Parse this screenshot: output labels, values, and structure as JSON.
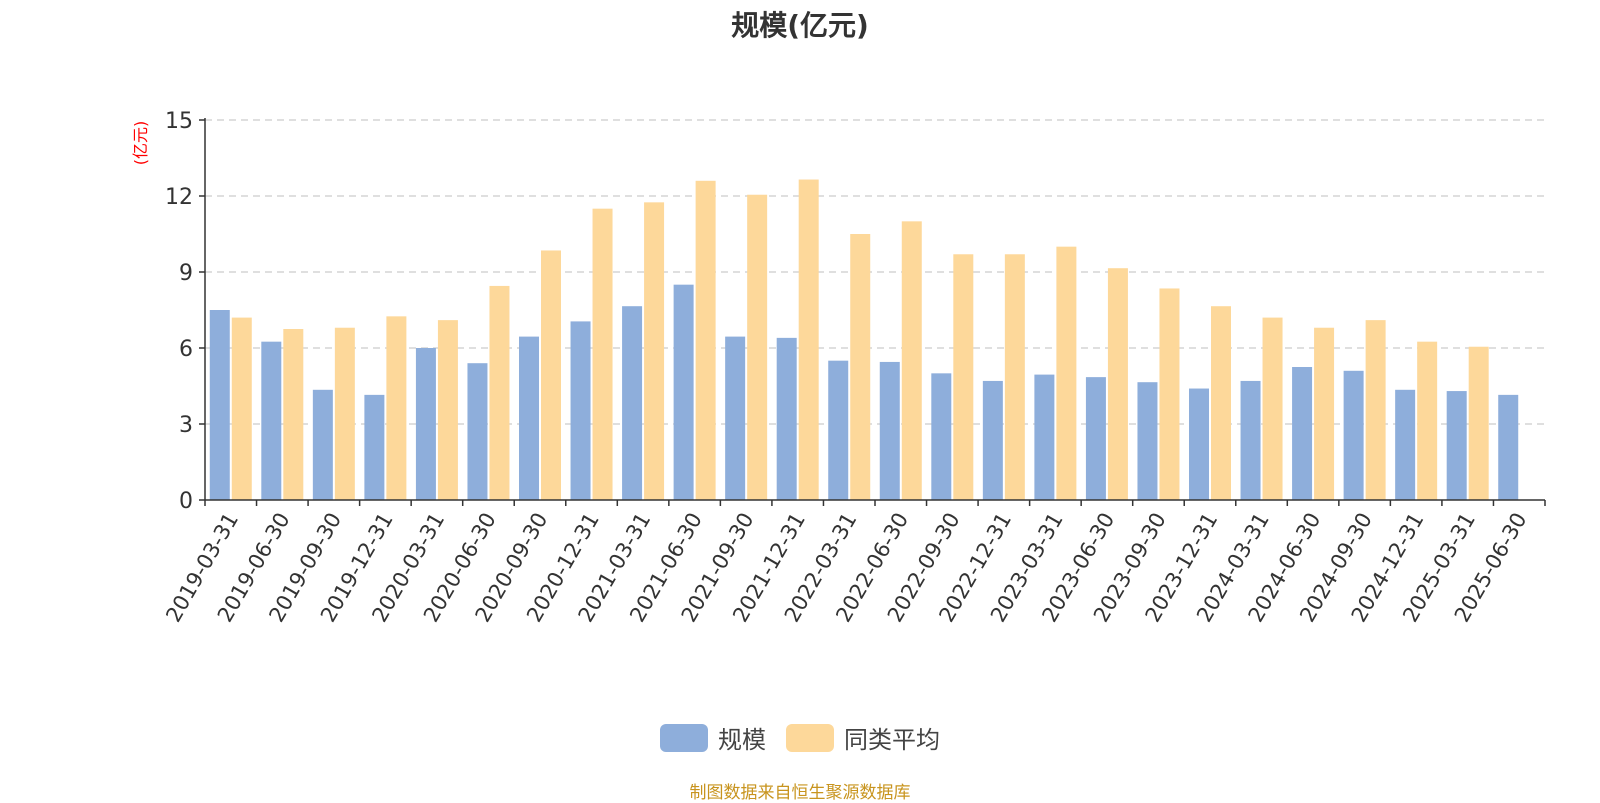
{
  "chart_data": {
    "type": "bar",
    "title": "规模(亿元)",
    "ylabel": "(亿元)",
    "xlabel": "",
    "ylim": [
      0,
      15
    ],
    "yticks": [
      0,
      3,
      6,
      9,
      12,
      15
    ],
    "grid": true,
    "legend_position": "bottom-center",
    "categories": [
      "2019-03-31",
      "2019-06-30",
      "2019-09-30",
      "2019-12-31",
      "2020-03-31",
      "2020-06-30",
      "2020-09-30",
      "2020-12-31",
      "2021-03-31",
      "2021-06-30",
      "2021-09-30",
      "2021-12-31",
      "2022-03-31",
      "2022-06-30",
      "2022-09-30",
      "2022-12-31",
      "2023-03-31",
      "2023-06-30",
      "2023-09-30",
      "2023-12-31",
      "2024-03-31",
      "2024-06-30",
      "2024-09-30",
      "2024-12-31",
      "2025-03-31",
      "2025-06-30"
    ],
    "series": [
      {
        "name": "规模",
        "color": "#8eaedb",
        "values": [
          7.5,
          6.25,
          4.35,
          4.15,
          6.0,
          5.4,
          6.45,
          7.05,
          7.65,
          8.5,
          6.45,
          6.4,
          5.5,
          5.45,
          5.0,
          4.7,
          4.95,
          4.85,
          4.65,
          4.4,
          4.7,
          5.25,
          5.1,
          4.35,
          4.3,
          4.15
        ]
      },
      {
        "name": "同类平均",
        "color": "#fdd89a",
        "values": [
          7.2,
          6.75,
          6.8,
          7.25,
          7.1,
          8.45,
          9.85,
          11.5,
          11.75,
          12.6,
          12.05,
          12.65,
          10.5,
          11.0,
          9.7,
          9.7,
          10.0,
          9.15,
          8.35,
          7.65,
          7.2,
          6.8,
          7.1,
          6.25,
          6.05,
          null
        ]
      }
    ]
  },
  "footer": {
    "source": "制图数据来自恒生聚源数据库"
  },
  "colors": {
    "axis": "#333333",
    "grid": "#cccccc",
    "ylabel": "#ff0000"
  }
}
